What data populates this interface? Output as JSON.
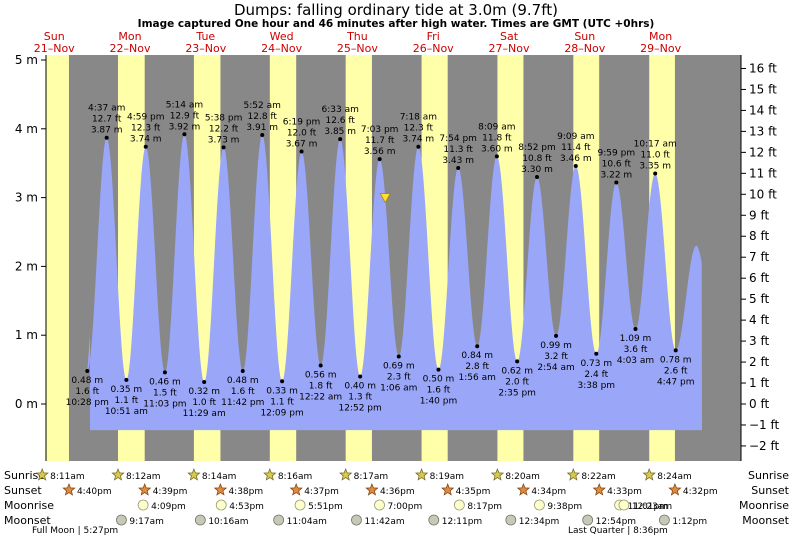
{
  "chart_data": {
    "type": "area",
    "title": "Dumps: falling  ordinary tide at 3.0m (9.7ft)",
    "subtitle": "Image captured One hour and 46 minutes after high water. Times are GMT (UTC +0hrs)",
    "ylim": [
      -0.8,
      5.2
    ],
    "y_ticks_m": [
      {
        "v": 0,
        "label": "0 m"
      },
      {
        "v": 1,
        "label": "1 m"
      },
      {
        "v": 2,
        "label": "2 m"
      },
      {
        "v": 3,
        "label": "3 m"
      },
      {
        "v": 4,
        "label": "4 m"
      },
      {
        "v": 5,
        "label": "5 m"
      }
    ],
    "y_ticks_ft": [
      {
        "v": -2,
        "label": "−2 ft"
      },
      {
        "v": -1,
        "label": "−1 ft"
      },
      {
        "v": 0,
        "label": "0 ft"
      },
      {
        "v": 1,
        "label": "1 ft"
      },
      {
        "v": 2,
        "label": "2 ft"
      },
      {
        "v": 3,
        "label": "3 ft"
      },
      {
        "v": 4,
        "label": "4 ft"
      },
      {
        "v": 5,
        "label": "5 ft"
      },
      {
        "v": 6,
        "label": "6 ft"
      },
      {
        "v": 7,
        "label": "7 ft"
      },
      {
        "v": 8,
        "label": "8 ft"
      },
      {
        "v": 9,
        "label": "9 ft"
      },
      {
        "v": 10,
        "label": "10 ft"
      },
      {
        "v": 11,
        "label": "11 ft"
      },
      {
        "v": 12,
        "label": "12 ft"
      },
      {
        "v": 13,
        "label": "13 ft"
      },
      {
        "v": 14,
        "label": "14 ft"
      },
      {
        "v": 15,
        "label": "15 ft"
      },
      {
        "v": 16,
        "label": "16 ft"
      }
    ],
    "days": [
      {
        "day": 0,
        "name": "Sun",
        "date": "21–Nov"
      },
      {
        "day": 1,
        "name": "Mon",
        "date": "22–Nov"
      },
      {
        "day": 2,
        "name": "Tue",
        "date": "23–Nov"
      },
      {
        "day": 3,
        "name": "Wed",
        "date": "24–Nov"
      },
      {
        "day": 4,
        "name": "Thu",
        "date": "25–Nov"
      },
      {
        "day": 5,
        "name": "Fri",
        "date": "26–Nov"
      },
      {
        "day": 6,
        "name": "Sat",
        "date": "27–Nov"
      },
      {
        "day": 7,
        "name": "Sun",
        "date": "28–Nov"
      },
      {
        "day": 8,
        "name": "Mon",
        "date": "29–Nov"
      }
    ],
    "tides": [
      {
        "kind": "low",
        "day": 0,
        "time": "10:28 pm",
        "m": "0.48 m",
        "ft": "1.6 ft",
        "h": 0.48
      },
      {
        "kind": "high",
        "day": 1,
        "time": "4:37 am",
        "m": "3.87 m",
        "ft": "12.7 ft",
        "h": 3.87
      },
      {
        "kind": "low",
        "day": 1,
        "time": "10:51 am",
        "m": "0.35 m",
        "ft": "1.1 ft",
        "h": 0.35
      },
      {
        "kind": "high",
        "day": 1,
        "time": "4:59 pm",
        "m": "3.74 m",
        "ft": "12.3 ft",
        "h": 3.74
      },
      {
        "kind": "low",
        "day": 1,
        "time": "11:03 pm",
        "m": "0.46 m",
        "ft": "1.5 ft",
        "h": 0.46
      },
      {
        "kind": "high",
        "day": 2,
        "time": "5:14 am",
        "m": "3.92 m",
        "ft": "12.9 ft",
        "h": 3.92
      },
      {
        "kind": "low",
        "day": 2,
        "time": "11:29 am",
        "m": "0.32 m",
        "ft": "1.0 ft",
        "h": 0.32
      },
      {
        "kind": "high",
        "day": 2,
        "time": "5:38 pm",
        "m": "3.73 m",
        "ft": "12.2 ft",
        "h": 3.73
      },
      {
        "kind": "low",
        "day": 2,
        "time": "11:42 pm",
        "m": "0.48 m",
        "ft": "1.6 ft",
        "h": 0.48
      },
      {
        "kind": "high",
        "day": 3,
        "time": "5:52 am",
        "m": "3.91 m",
        "ft": "12.8 ft",
        "h": 3.91
      },
      {
        "kind": "low",
        "day": 3,
        "time": "12:09 pm",
        "m": "0.33 m",
        "ft": "1.1 ft",
        "h": 0.33
      },
      {
        "kind": "high",
        "day": 3,
        "time": "6:19 pm",
        "m": "3.67 m",
        "ft": "12.0 ft",
        "h": 3.67
      },
      {
        "kind": "low",
        "day": 4,
        "time": "12:22 am",
        "m": "0.56 m",
        "ft": "1.8 ft",
        "h": 0.56
      },
      {
        "kind": "high",
        "day": 4,
        "time": "6:33 am",
        "m": "3.85 m",
        "ft": "12.6 ft",
        "h": 3.85
      },
      {
        "kind": "low",
        "day": 4,
        "time": "12:52 pm",
        "m": "0.40 m",
        "ft": "1.3 ft",
        "h": 0.4
      },
      {
        "kind": "high",
        "day": 4,
        "time": "7:03 pm",
        "m": "3.56 m",
        "ft": "11.7 ft",
        "h": 3.56
      },
      {
        "kind": "low",
        "day": 5,
        "time": "1:06 am",
        "m": "0.69 m",
        "ft": "2.3 ft",
        "h": 0.69
      },
      {
        "kind": "high",
        "day": 5,
        "time": "7:18 am",
        "m": "3.74 m",
        "ft": "12.3 ft",
        "h": 3.74
      },
      {
        "kind": "low",
        "day": 5,
        "time": "1:40 pm",
        "m": "0.50 m",
        "ft": "1.6 ft",
        "h": 0.5
      },
      {
        "kind": "high",
        "day": 5,
        "time": "7:54 pm",
        "m": "3.43 m",
        "ft": "11.3 ft",
        "h": 3.43
      },
      {
        "kind": "low",
        "day": 6,
        "time": "1:56 am",
        "m": "0.84 m",
        "ft": "2.8 ft",
        "h": 0.84
      },
      {
        "kind": "high",
        "day": 6,
        "time": "8:09 am",
        "m": "3.60 m",
        "ft": "11.8 ft",
        "h": 3.6
      },
      {
        "kind": "low",
        "day": 6,
        "time": "2:35 pm",
        "m": "0.62 m",
        "ft": "2.0 ft",
        "h": 0.62
      },
      {
        "kind": "high",
        "day": 6,
        "time": "8:52 pm",
        "m": "3.30 m",
        "ft": "10.8 ft",
        "h": 3.3
      },
      {
        "kind": "low",
        "day": 7,
        "time": "2:54 am",
        "m": "0.99 m",
        "ft": "3.2 ft",
        "h": 0.99
      },
      {
        "kind": "high",
        "day": 7,
        "time": "9:09 am",
        "m": "3.46 m",
        "ft": "11.4 ft",
        "h": 3.46
      },
      {
        "kind": "low",
        "day": 7,
        "time": "3:38 pm",
        "m": "0.73 m",
        "ft": "2.4 ft",
        "h": 0.73
      },
      {
        "kind": "high",
        "day": 7,
        "time": "9:59 pm",
        "m": "3.22 m",
        "ft": "10.6 ft",
        "h": 3.22
      },
      {
        "kind": "low",
        "day": 8,
        "time": "4:03 am",
        "m": "1.09 m",
        "ft": "3.6 ft",
        "h": 1.09
      },
      {
        "kind": "high",
        "day": 8,
        "time": "10:17 am",
        "m": "3.35 m",
        "ft": "11.0 ft",
        "h": 3.35
      },
      {
        "kind": "low",
        "day": 8,
        "time": "4:47 pm",
        "m": "0.78 m",
        "ft": "2.6 ft",
        "h": 0.78
      }
    ],
    "current": {
      "day": 4,
      "time": "8:49 pm",
      "m": 3.0
    },
    "sunrise": [
      "8:11am",
      "8:12am",
      "8:14am",
      "8:16am",
      "8:17am",
      "8:19am",
      "8:20am",
      "8:22am",
      "8:24am"
    ],
    "sunset": [
      "4:40pm",
      "4:39pm",
      "4:38pm",
      "4:37pm",
      "4:36pm",
      "4:35pm",
      "4:34pm",
      "4:33pm",
      "4:32pm"
    ],
    "moonrise": [
      {
        "day": 1,
        "time": "4:09pm"
      },
      {
        "day": 2,
        "time": "4:53pm"
      },
      {
        "day": 3,
        "time": "5:51pm"
      },
      {
        "day": 4,
        "time": "7:00pm"
      },
      {
        "day": 5,
        "time": "8:17pm"
      },
      {
        "day": 6,
        "time": "9:38pm"
      },
      {
        "day": 7,
        "time": "11:01pm"
      },
      {
        "day": 8,
        "time": "12:23am"
      }
    ],
    "moonset": [
      {
        "day": 1,
        "time": "9:17am"
      },
      {
        "day": 2,
        "time": "10:16am"
      },
      {
        "day": 3,
        "time": "11:04am"
      },
      {
        "day": 4,
        "time": "11:42am"
      },
      {
        "day": 5,
        "time": "12:11pm"
      },
      {
        "day": 6,
        "time": "12:34pm"
      },
      {
        "day": 7,
        "time": "12:54pm"
      },
      {
        "day": 8,
        "time": "1:12pm"
      }
    ],
    "phases": [
      {
        "label": "Full Moon | 5:27pm"
      },
      {
        "label": "Last Quarter | 8:36pm"
      }
    ],
    "row_labels": {
      "sunrise": "Sunrise",
      "sunset": "Sunset",
      "moonrise": "Moonrise",
      "moonset": "Moonset"
    },
    "colors": {
      "night": "#888888",
      "day": "#ffffaa",
      "water": "#9aa6f8",
      "day_label": "#cc0000",
      "marker": "#ffdd33"
    }
  }
}
